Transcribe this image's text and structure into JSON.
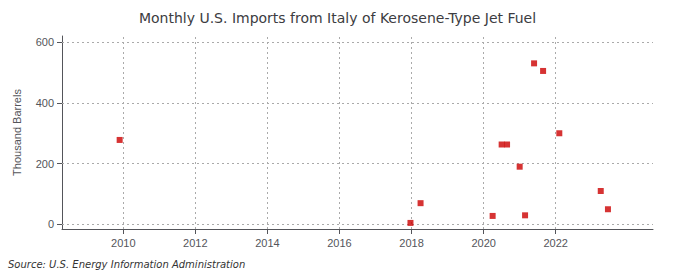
{
  "chart_data": {
    "type": "scatter",
    "title": "Monthly U.S. Imports from Italy of Kerosene-Type Jet Fuel",
    "ylabel": "Thousand Barrels",
    "annotation": "Source: U.S. Energy Information Administration",
    "x": [
      2009.9,
      2017.97,
      2018.25,
      2020.25,
      2020.5,
      2020.65,
      2021.0,
      2021.15,
      2021.4,
      2021.65,
      2022.1,
      2023.25,
      2023.45
    ],
    "values": [
      278,
      5,
      70,
      28,
      263,
      263,
      190,
      30,
      530,
      505,
      300,
      110,
      50
    ],
    "color": "#cc0000",
    "marker": "square",
    "xlim": [
      2008.3,
      2024.7
    ],
    "ylim": [
      -15,
      620
    ],
    "xticks": [
      2010,
      2012,
      2014,
      2016,
      2018,
      2020,
      2022
    ],
    "yticks": [
      0,
      200,
      400,
      600
    ],
    "grid": true
  }
}
